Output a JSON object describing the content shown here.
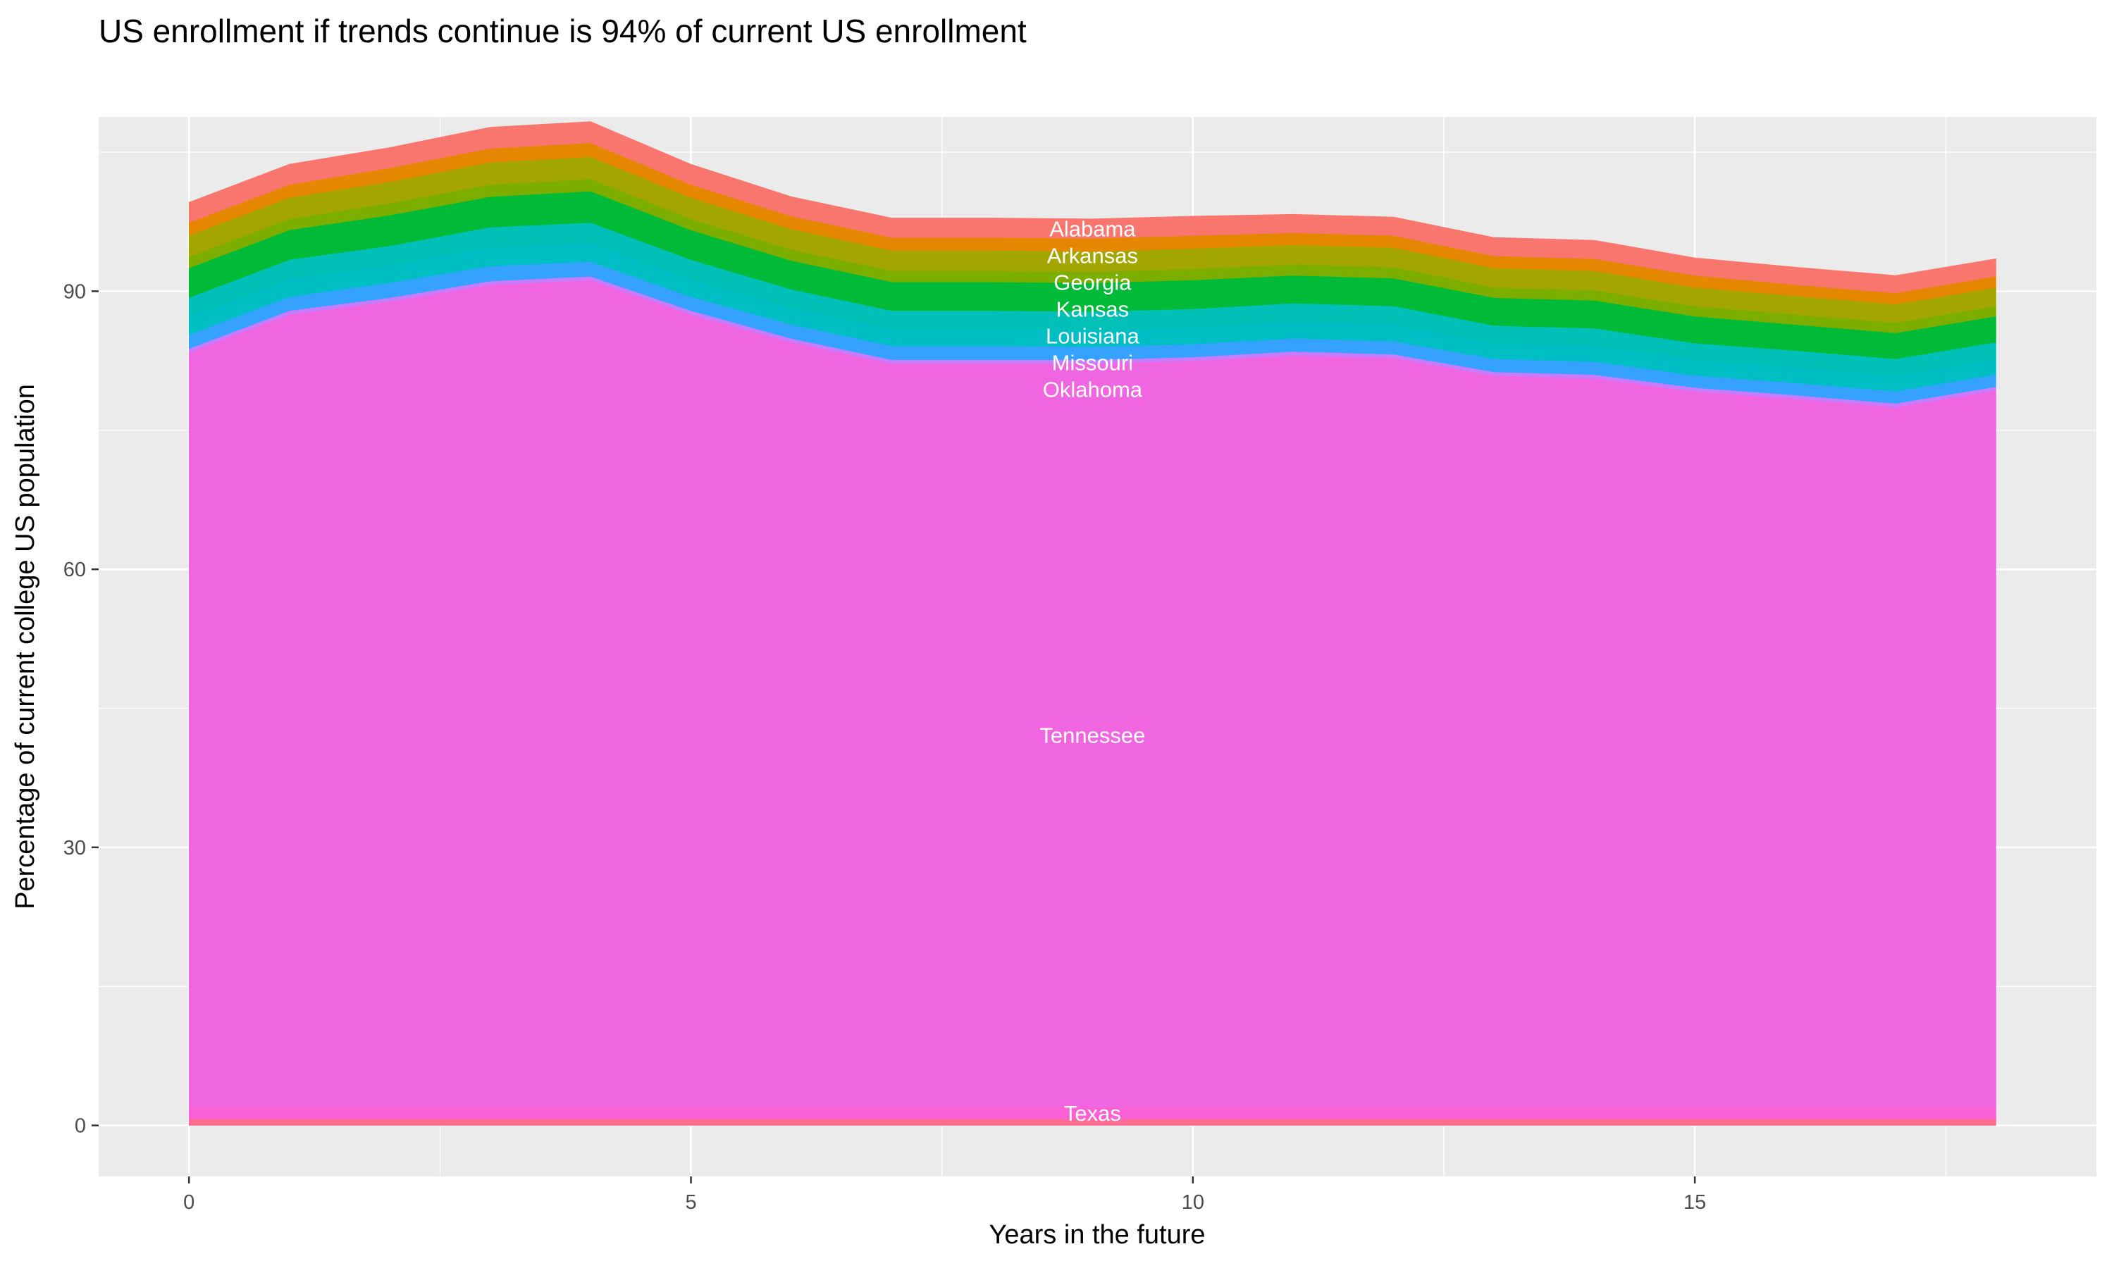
{
  "chart_data": {
    "type": "area",
    "stacked": true,
    "title": "US enrollment if trends continue is 94% of current US enrollment",
    "xlabel": "Years in the future",
    "ylabel": "Percentage of current college US population",
    "x": [
      0,
      1,
      2,
      3,
      4,
      5,
      6,
      7,
      8,
      9,
      10,
      11,
      12,
      13,
      14,
      15,
      16,
      17,
      18
    ],
    "xlim": [
      -0.9,
      19.0
    ],
    "ylim": [
      -5.5,
      108.8
    ],
    "x_ticks": [
      0,
      5,
      10,
      15
    ],
    "x_tick_labels": [
      "0",
      "5",
      "10",
      "15"
    ],
    "y_ticks": [
      0,
      30,
      60,
      90
    ],
    "y_tick_labels": [
      "0",
      "30",
      "60",
      "90"
    ],
    "grid": true,
    "background": "#EBEBEB",
    "label_x": 9,
    "series": [
      {
        "color": "#FF6C91",
        "values": [
          0.7,
          0.7,
          0.7,
          0.7,
          0.7,
          0.7,
          0.7,
          0.7,
          0.7,
          0.7,
          0.7,
          0.7,
          0.7,
          0.7,
          0.7,
          0.7,
          0.7,
          0.7,
          0.7
        ]
      },
      {
        "name": "Texas",
        "color": "#FB61D7",
        "values": [
          1.3,
          1.3,
          1.3,
          1.3,
          1.3,
          1.3,
          1.3,
          1.3,
          1.3,
          1.3,
          1.3,
          1.3,
          1.3,
          1.3,
          1.3,
          1.3,
          1.3,
          1.3,
          1.3
        ]
      },
      {
        "name": "Tennessee",
        "color": "#F066E0",
        "values": [
          81.4,
          85.5,
          86.9,
          88.7,
          89.2,
          85.5,
          82.5,
          80.2,
          80.2,
          80.2,
          80.5,
          81.1,
          80.8,
          78.9,
          78.6,
          77.2,
          76.4,
          75.5,
          77.3
        ]
      },
      {
        "color": "#C77CFF",
        "values": [
          0.4,
          0.4,
          0.4,
          0.4,
          0.4,
          0.4,
          0.4,
          0.4,
          0.4,
          0.4,
          0.4,
          0.4,
          0.4,
          0.4,
          0.4,
          0.4,
          0.4,
          0.4,
          0.4
        ]
      },
      {
        "name": "Oklahoma",
        "color": "#35A2FF",
        "values": [
          1.5,
          1.5,
          1.6,
          1.6,
          1.6,
          1.5,
          1.5,
          1.5,
          1.5,
          1.4,
          1.4,
          1.4,
          1.4,
          1.4,
          1.4,
          1.3,
          1.3,
          1.3,
          1.3
        ]
      },
      {
        "name": "Missouri",
        "color": "#00BFC4",
        "values": [
          1.9,
          1.9,
          1.9,
          2.0,
          2.0,
          1.9,
          1.8,
          1.8,
          1.8,
          1.8,
          1.8,
          1.8,
          1.8,
          1.7,
          1.7,
          1.7,
          1.7,
          1.7,
          1.7
        ]
      },
      {
        "name": "Louisiana",
        "color": "#00C0B8",
        "values": [
          2.1,
          2.1,
          2.1,
          2.2,
          2.2,
          2.1,
          2.0,
          2.0,
          2.0,
          2.0,
          2.0,
          2.0,
          2.0,
          1.9,
          1.9,
          1.8,
          1.8,
          1.8,
          1.8
        ]
      },
      {
        "name": "Kansas",
        "color": "#00BA38",
        "values": [
          3.2,
          3.2,
          3.3,
          3.3,
          3.4,
          3.2,
          3.1,
          3.1,
          3.1,
          3.1,
          3.1,
          3.0,
          3.0,
          3.0,
          3.0,
          2.9,
          2.8,
          2.8,
          2.8
        ]
      },
      {
        "color": "#7CAE00",
        "values": [
          1.2,
          1.2,
          1.3,
          1.3,
          1.3,
          1.2,
          1.2,
          1.2,
          1.2,
          1.2,
          1.2,
          1.2,
          1.2,
          1.1,
          1.1,
          1.1,
          1.1,
          1.1,
          1.1
        ]
      },
      {
        "name": "Georgia",
        "color": "#A3A500",
        "values": [
          2.3,
          2.3,
          2.3,
          2.4,
          2.4,
          2.3,
          2.2,
          2.2,
          2.2,
          2.2,
          2.2,
          2.1,
          2.1,
          2.1,
          2.1,
          2.0,
          2.0,
          2.0,
          2.0
        ]
      },
      {
        "name": "Arkansas",
        "color": "#E58700",
        "values": [
          1.4,
          1.4,
          1.5,
          1.5,
          1.5,
          1.4,
          1.4,
          1.4,
          1.4,
          1.4,
          1.4,
          1.3,
          1.3,
          1.3,
          1.3,
          1.3,
          1.2,
          1.2,
          1.2
        ]
      },
      {
        "name": "Alabama",
        "color": "#F8766D",
        "values": [
          2.2,
          2.2,
          2.2,
          2.3,
          2.3,
          2.2,
          2.1,
          2.1,
          2.1,
          2.1,
          2.1,
          2.0,
          2.0,
          2.0,
          2.0,
          1.9,
          1.9,
          1.9,
          1.9
        ]
      }
    ]
  }
}
